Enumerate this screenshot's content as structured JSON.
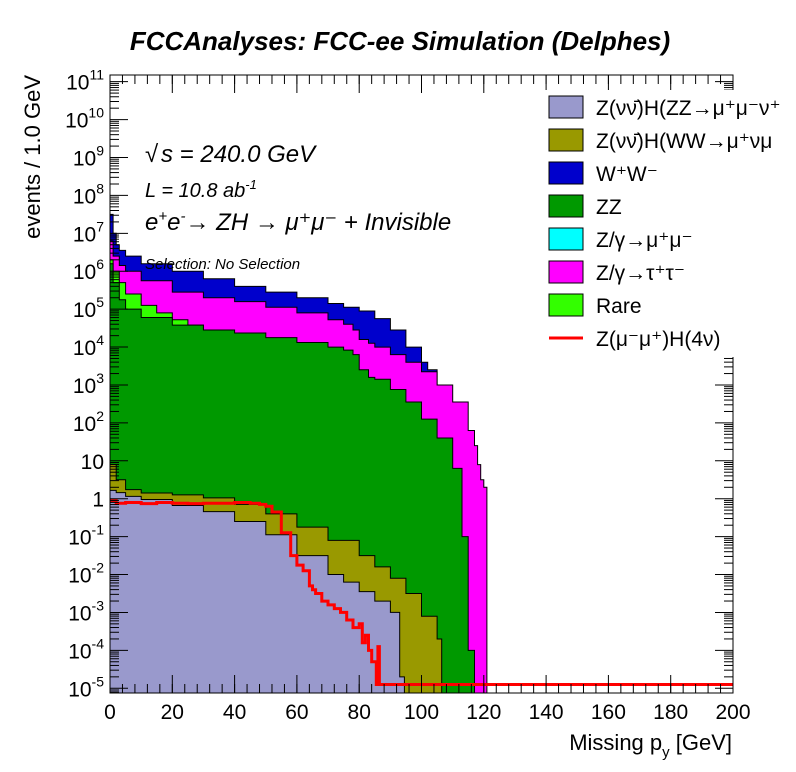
{
  "chart_data": {
    "type": "area",
    "title": "FCCAnalyses: FCC-ee Simulation (Delphes)",
    "xlabel": "Missing p_y [GeV]",
    "ylabel": "events / 1.0 GeV",
    "yscale": "log",
    "xlim": [
      0,
      200
    ],
    "ylim": [
      7.5e-06,
      150000000000.0
    ],
    "grid": false,
    "legend_position": "top-right",
    "x_ticks": [
      "0",
      "20",
      "40",
      "60",
      "80",
      "100",
      "120",
      "140",
      "160",
      "180",
      "200"
    ],
    "y_tick_exponents": [
      -5,
      -4,
      -3,
      -2,
      -1,
      0,
      1,
      2,
      3,
      4,
      5,
      6,
      7,
      8,
      9,
      10,
      11
    ],
    "annotations": {
      "sqrt_s": "s = 240.0 GeV",
      "lumi": "L = 10.8 ab",
      "lumi_sup": "-1",
      "process": "→ ZH → μ⁺μ⁻ + Invisible",
      "selection": "Selection: No Selection"
    },
    "legend": [
      {
        "label": "Z(νν̄)H(ZZ→μ⁺μ⁻ν⁺",
        "color": "#9999cc",
        "kind": "fill"
      },
      {
        "label": "Z(νν̄)H(WW→μ⁺νμ",
        "color": "#999900",
        "kind": "fill"
      },
      {
        "label": "W⁺W⁻",
        "color": "#0000cc",
        "kind": "fill"
      },
      {
        "label": "ZZ",
        "color": "#009900",
        "kind": "fill"
      },
      {
        "label": "Z/γ→μ⁺μ⁻",
        "color": "#00ffff",
        "kind": "fill"
      },
      {
        "label": "Z/γ→τ⁺τ⁻",
        "color": "#ff00ff",
        "kind": "fill"
      },
      {
        "label": "Rare",
        "color": "#33ff00",
        "kind": "fill"
      },
      {
        "label": "Z(μ⁻μ⁺)H(4ν)",
        "color": "#ff0000",
        "kind": "line"
      }
    ],
    "stack_order_bottom_to_top": [
      "Z(νν̄)H(ZZ)",
      "Z(νν̄)H(WW)",
      "ZZ",
      "Rare",
      "Z/γ→τ⁺τ⁻",
      "W⁺W⁻"
    ],
    "stack_cumulative_log10": [
      {
        "name": "Z(νν̄)H(ZZ)",
        "color": "#9999cc",
        "x": [
          0,
          2,
          5,
          10,
          20,
          30,
          40,
          50,
          60,
          70,
          75,
          80,
          85,
          90,
          93,
          94.5
        ],
        "log10_y": [
          0.22,
          0.16,
          0.06,
          -0.02,
          -0.18,
          -0.34,
          -0.6,
          -0.95,
          -1.5,
          -2.0,
          -2.2,
          -2.45,
          -2.7,
          -3.0,
          -4.7,
          -4.9
        ]
      },
      {
        "name": "Z(νν̄)H(WW)",
        "color": "#999900",
        "x": [
          0,
          2,
          5,
          10,
          20,
          30,
          40,
          50,
          60,
          70,
          80,
          85,
          90,
          95,
          100,
          105,
          106.5
        ],
        "log10_y": [
          0.9,
          0.5,
          0.24,
          0.15,
          0.1,
          0.02,
          -0.15,
          -0.4,
          -0.75,
          -1.1,
          -1.5,
          -1.8,
          -2.1,
          -2.5,
          -3.1,
          -3.7,
          -4.9
        ]
      },
      {
        "name": "ZZ",
        "color": "#009900",
        "x": [
          0,
          1,
          3,
          5,
          10,
          20,
          30,
          40,
          50,
          60,
          70,
          75,
          78,
          80,
          83,
          85,
          90,
          95,
          100,
          105,
          110,
          113,
          115,
          117
        ],
        "log10_y": [
          6.2,
          5.7,
          5.25,
          5.0,
          4.78,
          4.58,
          4.45,
          4.37,
          4.25,
          4.12,
          4.0,
          3.92,
          3.8,
          3.4,
          3.2,
          3.15,
          2.88,
          2.55,
          2.1,
          1.6,
          0.8,
          -1.0,
          -4.0,
          -4.9
        ]
      },
      {
        "name": "Rare",
        "color": "#33ff00",
        "x": [
          0,
          1,
          3,
          5,
          10,
          15,
          20,
          25,
          30
        ],
        "log10_y": [
          6.3,
          6.0,
          5.7,
          5.4,
          5.1,
          4.9,
          4.72,
          4.58,
          4.47
        ]
      },
      {
        "name": "Z/γ→τ⁺τ⁻",
        "color": "#ff00ff",
        "x": [
          0,
          1,
          3,
          5,
          10,
          20,
          30,
          40,
          50,
          60,
          70,
          75,
          78,
          80,
          83,
          85,
          90,
          95,
          100,
          105,
          110,
          115,
          117,
          118,
          119,
          120,
          121
        ],
        "log10_y": [
          6.8,
          6.4,
          6.15,
          6.0,
          5.75,
          5.45,
          5.3,
          5.2,
          5.05,
          4.9,
          4.72,
          4.6,
          4.45,
          4.2,
          4.1,
          4.0,
          3.8,
          3.6,
          3.35,
          3.0,
          2.55,
          1.8,
          1.4,
          0.9,
          0.5,
          0.3,
          -4.9
        ]
      },
      {
        "name": "W⁺W⁻",
        "color": "#0000cc",
        "x": [
          0,
          1,
          2,
          3,
          5,
          10,
          20,
          30,
          40,
          50,
          60,
          70,
          75,
          80,
          85,
          90,
          95,
          100,
          102,
          105,
          106
        ],
        "log10_y": [
          7.5,
          7.0,
          6.7,
          6.55,
          6.4,
          6.2,
          6.0,
          5.8,
          5.6,
          5.45,
          5.3,
          5.15,
          5.05,
          4.95,
          4.75,
          4.45,
          4.0,
          3.6,
          3.4,
          3.0,
          -4.9
        ]
      }
    ],
    "signal_line_log10": {
      "name": "Z(μ⁻μ⁺)H(4ν)",
      "color": "#ff0000",
      "x": [
        0,
        2,
        5,
        10,
        15,
        20,
        25,
        30,
        35,
        40,
        45,
        48,
        50,
        52,
        55,
        58,
        60,
        62,
        64,
        65,
        66,
        68,
        70,
        72,
        74,
        76,
        78,
        80,
        81,
        82,
        83,
        84,
        85,
        85.5,
        86,
        86.5,
        200
      ],
      "log10_y": [
        -0.05,
        -0.12,
        -0.1,
        -0.13,
        -0.1,
        -0.12,
        -0.13,
        -0.12,
        -0.12,
        -0.1,
        -0.12,
        -0.15,
        -0.2,
        -0.35,
        -0.9,
        -1.5,
        -1.75,
        -1.9,
        -2.3,
        -2.4,
        -2.5,
        -2.7,
        -2.8,
        -2.9,
        -3.0,
        -3.2,
        -3.4,
        -3.3,
        -3.8,
        -3.6,
        -4.0,
        -4.3,
        -4.3,
        -4.9,
        -3.9,
        -4.9,
        -4.9
      ]
    }
  }
}
